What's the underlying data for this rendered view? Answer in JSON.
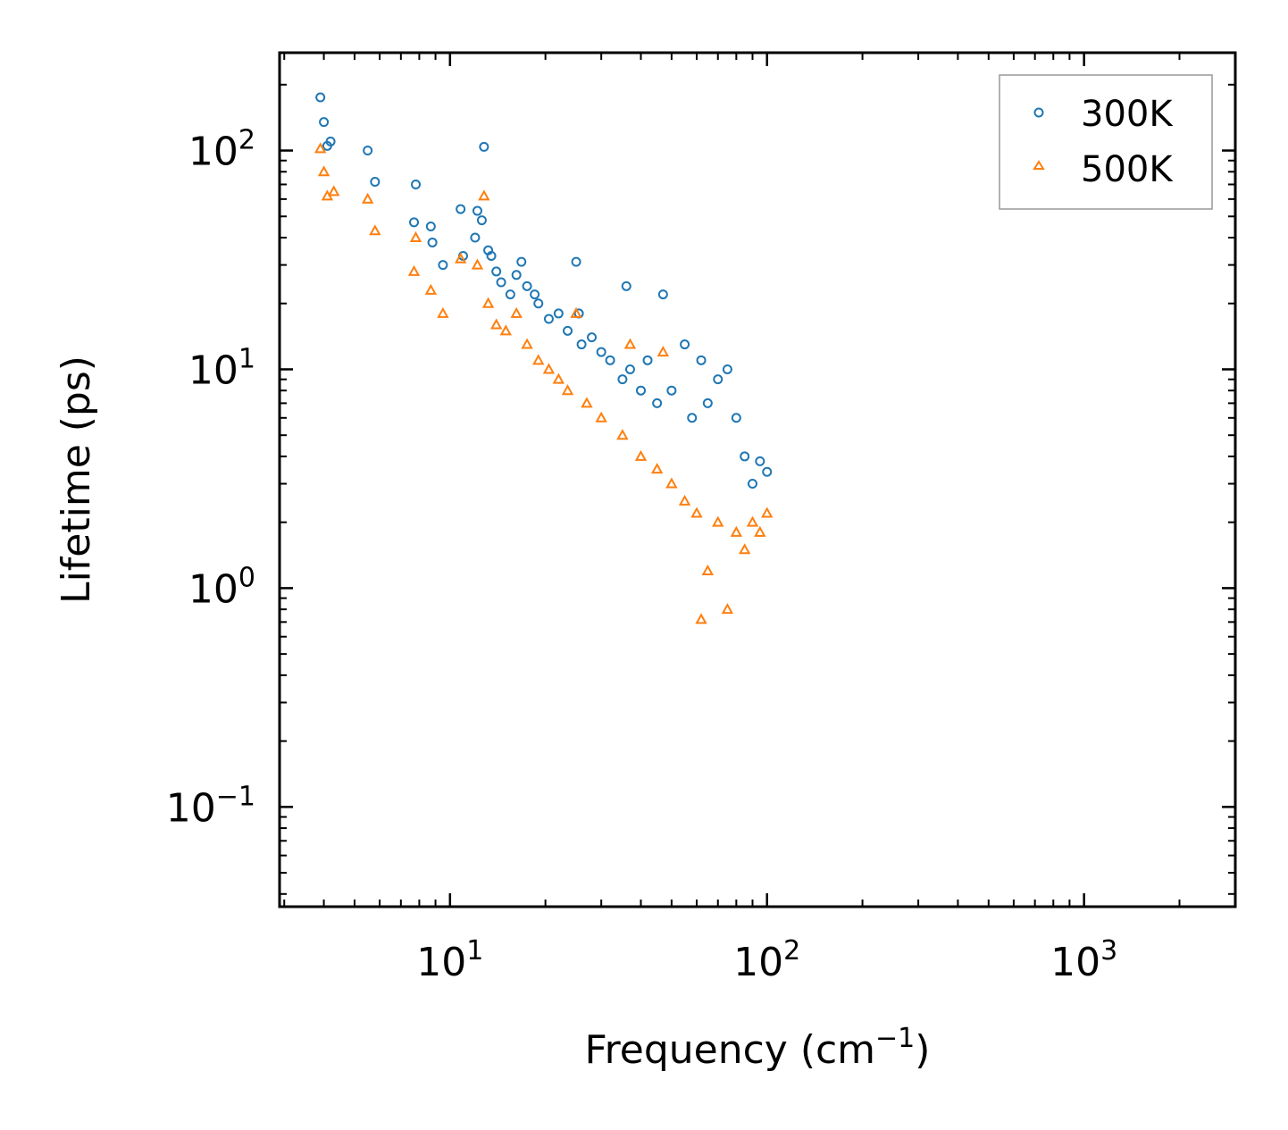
{
  "chart_data": {
    "type": "scatter",
    "xscale": "log",
    "yscale": "log",
    "xlabel": "Frequency (cm",
    "xlabel_sup": "−1",
    "xlabel_close": ")",
    "ylabel": "Lifetime (ps)",
    "xlim": [
      2.9,
      3000
    ],
    "ylim": [
      0.035,
      280
    ],
    "x_ticks": [
      {
        "value": 10,
        "base": "10",
        "exp": "1"
      },
      {
        "value": 100,
        "base": "10",
        "exp": "2"
      },
      {
        "value": 1000,
        "base": "10",
        "exp": "3"
      }
    ],
    "y_ticks": [
      {
        "value": 0.1,
        "base": "10",
        "exp": "−1"
      },
      {
        "value": 1,
        "base": "10",
        "exp": "0"
      },
      {
        "value": 10,
        "base": "10",
        "exp": "1"
      },
      {
        "value": 100,
        "base": "10",
        "exp": "2"
      }
    ],
    "legend_position": "top-right",
    "series": [
      {
        "name": "300K",
        "marker": "circle",
        "color": "#1f77b4",
        "points": [
          [
            3.9,
            175
          ],
          [
            4.0,
            135
          ],
          [
            4.1,
            105
          ],
          [
            4.2,
            110
          ],
          [
            5.5,
            100
          ],
          [
            5.8,
            72
          ],
          [
            7.8,
            70
          ],
          [
            7.7,
            47
          ],
          [
            8.7,
            45
          ],
          [
            8.8,
            38
          ],
          [
            9.5,
            30
          ],
          [
            10.8,
            54
          ],
          [
            11.0,
            33
          ],
          [
            12.2,
            53
          ],
          [
            12.6,
            48
          ],
          [
            12.8,
            104
          ],
          [
            12.0,
            40
          ],
          [
            13.2,
            35
          ],
          [
            13.5,
            33
          ],
          [
            14.0,
            28
          ],
          [
            14.5,
            25
          ],
          [
            15.5,
            22
          ],
          [
            16.2,
            27
          ],
          [
            16.8,
            31
          ],
          [
            17.5,
            24
          ],
          [
            18.5,
            22
          ],
          [
            19.0,
            20
          ],
          [
            20.5,
            17
          ],
          [
            22.0,
            18
          ],
          [
            23.5,
            15
          ],
          [
            25.0,
            31
          ],
          [
            25.5,
            18
          ],
          [
            26.0,
            13
          ],
          [
            28.0,
            14
          ],
          [
            30.0,
            12
          ],
          [
            32.0,
            11
          ],
          [
            35.0,
            9
          ],
          [
            36.0,
            24
          ],
          [
            37.0,
            10
          ],
          [
            40.0,
            8
          ],
          [
            42.0,
            11
          ],
          [
            45.0,
            7
          ],
          [
            47.0,
            22
          ],
          [
            50.0,
            8
          ],
          [
            55.0,
            13
          ],
          [
            58.0,
            6
          ],
          [
            62.0,
            11
          ],
          [
            65.0,
            7
          ],
          [
            70.0,
            9
          ],
          [
            75.0,
            10
          ],
          [
            80.0,
            6
          ],
          [
            85.0,
            4
          ],
          [
            90.0,
            3
          ],
          [
            95.0,
            3.8
          ],
          [
            100.0,
            3.4
          ]
        ]
      },
      {
        "name": "500K",
        "marker": "triangle",
        "color": "#ff7f0e",
        "points": [
          [
            3.9,
            102
          ],
          [
            4.0,
            80
          ],
          [
            4.1,
            62
          ],
          [
            4.3,
            65
          ],
          [
            5.5,
            60
          ],
          [
            5.8,
            43
          ],
          [
            7.8,
            40
          ],
          [
            7.7,
            28
          ],
          [
            8.7,
            23
          ],
          [
            9.5,
            18
          ],
          [
            10.8,
            32
          ],
          [
            12.2,
            30
          ],
          [
            12.8,
            62
          ],
          [
            13.2,
            20
          ],
          [
            14.0,
            16
          ],
          [
            15.0,
            15
          ],
          [
            16.2,
            18
          ],
          [
            17.5,
            13
          ],
          [
            19.0,
            11
          ],
          [
            20.5,
            10
          ],
          [
            22.0,
            9
          ],
          [
            23.5,
            8
          ],
          [
            25.0,
            18
          ],
          [
            27.0,
            7
          ],
          [
            30.0,
            6
          ],
          [
            35.0,
            5
          ],
          [
            37.0,
            13
          ],
          [
            40.0,
            4
          ],
          [
            45.0,
            3.5
          ],
          [
            47.0,
            12
          ],
          [
            50.0,
            3
          ],
          [
            55.0,
            2.5
          ],
          [
            60.0,
            2.2
          ],
          [
            62.0,
            0.72
          ],
          [
            65.0,
            1.2
          ],
          [
            70.0,
            2.0
          ],
          [
            75.0,
            0.8
          ],
          [
            80.0,
            1.8
          ],
          [
            85.0,
            1.5
          ],
          [
            90.0,
            2.0
          ],
          [
            95.0,
            1.8
          ],
          [
            100.0,
            2.2
          ]
        ]
      }
    ]
  }
}
